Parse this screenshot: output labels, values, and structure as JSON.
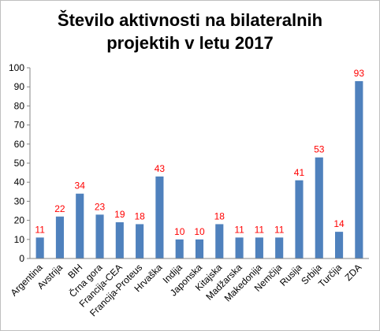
{
  "chart_data": {
    "type": "bar",
    "title_line1": "Število aktivnosti na bilateralnih",
    "title_line2": "projektih v letu 2017",
    "categories": [
      "Argentina",
      "Avstrija",
      "BIH",
      "Črna gora",
      "Francija-CEA",
      "Francija-Proteus",
      "Hrvaška",
      "Indija",
      "Japonska",
      "Kitajska",
      "Madžarska",
      "Makedonija",
      "Nemčija",
      "Rusija",
      "Srbija",
      "Turčija",
      "ZDA"
    ],
    "values": [
      11,
      22,
      34,
      23,
      19,
      18,
      43,
      10,
      10,
      18,
      11,
      11,
      11,
      41,
      53,
      14,
      93
    ],
    "ylim": [
      0,
      100
    ],
    "yticks": [
      0,
      10,
      20,
      30,
      40,
      50,
      60,
      70,
      80,
      90,
      100
    ],
    "grid": false,
    "bar_color": "#4f81bd",
    "label_color": "#ff0000"
  }
}
